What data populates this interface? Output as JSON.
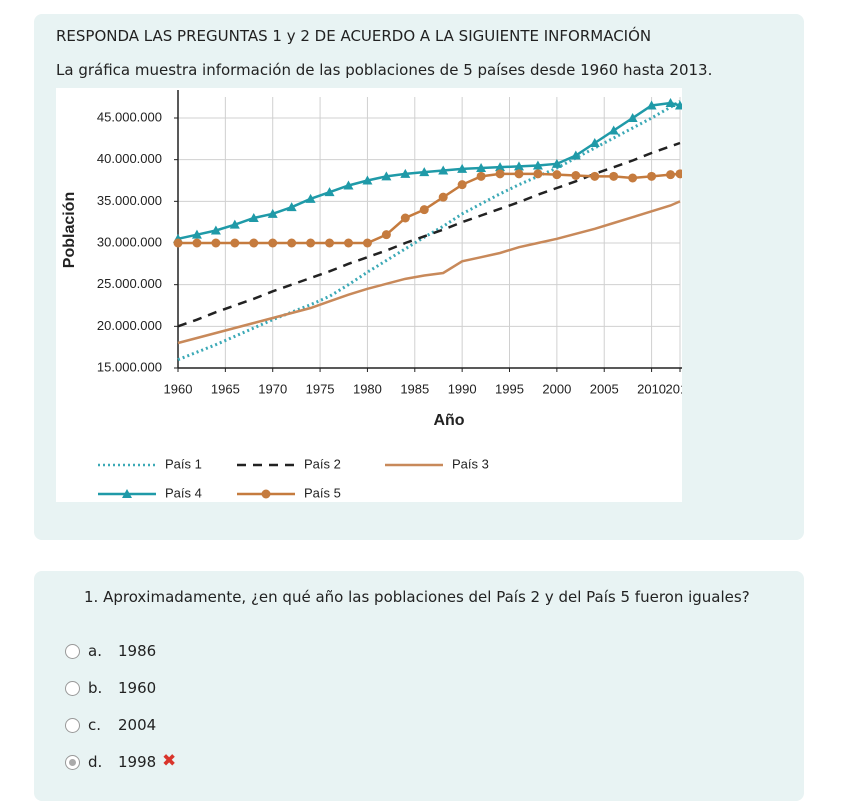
{
  "header": {
    "title": "RESPONDA LAS PREGUNTAS 1 y 2 DE ACUERDO A LA SIGUIENTE INFORMACIÓN",
    "subtitle": "La gráfica muestra información de las poblaciones de 5 países desde 1960 hasta 2013."
  },
  "chart_data": {
    "type": "line",
    "x_label": "Año",
    "y_label": "Población",
    "x": [
      1960,
      1962,
      1964,
      1966,
      1968,
      1970,
      1972,
      1974,
      1976,
      1978,
      1980,
      1982,
      1984,
      1986,
      1988,
      1990,
      1992,
      1994,
      1996,
      1998,
      2000,
      2002,
      2004,
      2006,
      2008,
      2010,
      2012,
      2013
    ],
    "xlim": [
      1960,
      2013
    ],
    "xticks": [
      1960,
      1965,
      1970,
      1975,
      1980,
      1985,
      1990,
      1995,
      2000,
      2005,
      2010,
      2013
    ],
    "ylim": [
      15000000,
      48000000
    ],
    "yticks": [
      {
        "value": 15000000,
        "label": "15.000.000"
      },
      {
        "value": 20000000,
        "label": "20.000.000"
      },
      {
        "value": 25000000,
        "label": "25.000.000"
      },
      {
        "value": 30000000,
        "label": "30.000.000"
      },
      {
        "value": 35000000,
        "label": "35.000.000"
      },
      {
        "value": 40000000,
        "label": "40.000.000"
      },
      {
        "value": 45000000,
        "label": "45.000.000"
      }
    ],
    "grid": true,
    "series": [
      {
        "name": "País 1",
        "color": "#3ba9b6",
        "style": "dotted",
        "marker": "none",
        "values": [
          16000000,
          16900000,
          17800000,
          18800000,
          19800000,
          20800000,
          21700000,
          22600000,
          23600000,
          25000000,
          26500000,
          27900000,
          29300000,
          30700000,
          32000000,
          33500000,
          34700000,
          35900000,
          37000000,
          38000000,
          39000000,
          40200000,
          41400000,
          42600000,
          43800000,
          45000000,
          46300000,
          47000000
        ]
      },
      {
        "name": "País 2",
        "color": "#222222",
        "style": "dashed",
        "marker": "none",
        "values": [
          20000000,
          20800000,
          21700000,
          22500000,
          23300000,
          24200000,
          25000000,
          25800000,
          26600000,
          27500000,
          28300000,
          29100000,
          30000000,
          30800000,
          31600000,
          32500000,
          33300000,
          34100000,
          34900000,
          35800000,
          36600000,
          37400000,
          38300000,
          39100000,
          39900000,
          40800000,
          41600000,
          42000000
        ]
      },
      {
        "name": "País 3",
        "color": "#c8895a",
        "style": "solid",
        "marker": "none",
        "values": [
          18000000,
          18600000,
          19200000,
          19800000,
          20400000,
          21000000,
          21600000,
          22200000,
          23000000,
          23800000,
          24500000,
          25100000,
          25700000,
          26100000,
          26400000,
          27800000,
          28300000,
          28800000,
          29500000,
          30000000,
          30500000,
          31100000,
          31700000,
          32400000,
          33100000,
          33800000,
          34500000,
          35000000
        ]
      },
      {
        "name": "País 4",
        "color": "#1f9aa8",
        "style": "solid",
        "marker": "triangle",
        "values": [
          30500000,
          31000000,
          31500000,
          32200000,
          33000000,
          33500000,
          34300000,
          35300000,
          36100000,
          36900000,
          37500000,
          38000000,
          38300000,
          38500000,
          38700000,
          38900000,
          39000000,
          39100000,
          39200000,
          39300000,
          39500000,
          40500000,
          42000000,
          43500000,
          45000000,
          46500000,
          46800000,
          46500000
        ]
      },
      {
        "name": "País 5",
        "color": "#c57b3e",
        "style": "solid",
        "marker": "circle",
        "values": [
          30000000,
          30000000,
          30000000,
          30000000,
          30000000,
          30000000,
          30000000,
          30000000,
          30000000,
          30000000,
          30000000,
          31000000,
          33000000,
          34000000,
          35500000,
          37000000,
          38000000,
          38300000,
          38300000,
          38300000,
          38200000,
          38100000,
          38000000,
          38000000,
          37800000,
          38000000,
          38200000,
          38300000
        ]
      }
    ]
  },
  "question": {
    "text": "1. Aproximadamente, ¿en qué año las poblaciones del País 2 y del País 5 fueron iguales?",
    "options": [
      {
        "letter": "a.",
        "text": "1986"
      },
      {
        "letter": "b.",
        "text": "1960"
      },
      {
        "letter": "c.",
        "text": "2004"
      },
      {
        "letter": "d.",
        "text": "1998"
      }
    ],
    "selected": 3
  }
}
